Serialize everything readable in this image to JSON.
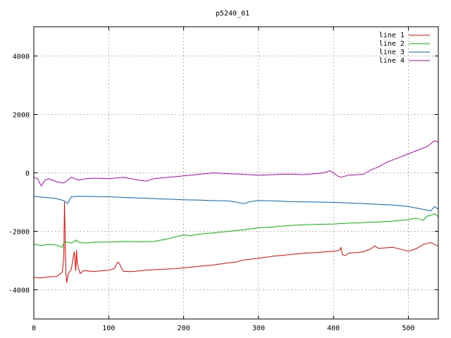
{
  "chart_data": {
    "type": "line",
    "title": "p5240_01",
    "xlabel": "",
    "ylabel": "",
    "xlim": [
      0,
      540
    ],
    "ylim": [
      -5000,
      5000
    ],
    "xticks": [
      0,
      100,
      200,
      300,
      400,
      500
    ],
    "yticks": [
      -4000,
      -2000,
      0,
      2000,
      4000
    ],
    "grid": true,
    "legend_position": "top-right",
    "series": [
      {
        "name": "line 1",
        "color": "#ff0000",
        "x": [
          0,
          10,
          20,
          30,
          38,
          40,
          41,
          42,
          43,
          44,
          46,
          50,
          54,
          56,
          57,
          58,
          60,
          62,
          66,
          70,
          80,
          90,
          100,
          105,
          108,
          110,
          112,
          114,
          118,
          120,
          130,
          150,
          170,
          190,
          200,
          220,
          240,
          260,
          270,
          280,
          300,
          320,
          340,
          360,
          380,
          400,
          408,
          410,
          412,
          416,
          420,
          440,
          450,
          455,
          460,
          480,
          500,
          510,
          520,
          530,
          535,
          540
        ],
        "values": [
          -3580,
          -3590,
          -3560,
          -3550,
          -3400,
          -2900,
          -1000,
          -2500,
          -3450,
          -3750,
          -3450,
          -3300,
          -2700,
          -3350,
          -2650,
          -3100,
          -3300,
          -3450,
          -3350,
          -3350,
          -3380,
          -3350,
          -3330,
          -3300,
          -3250,
          -3150,
          -3050,
          -3100,
          -3300,
          -3370,
          -3380,
          -3330,
          -3300,
          -3280,
          -3250,
          -3200,
          -3150,
          -3080,
          -3050,
          -2980,
          -2920,
          -2850,
          -2800,
          -2750,
          -2720,
          -2680,
          -2650,
          -2550,
          -2800,
          -2830,
          -2750,
          -2700,
          -2600,
          -2500,
          -2580,
          -2550,
          -2680,
          -2600,
          -2450,
          -2380,
          -2450,
          -2500
        ]
      },
      {
        "name": "line 2",
        "color": "#00c000",
        "x": [
          0,
          10,
          20,
          30,
          38,
          40,
          42,
          46,
          50,
          54,
          56,
          58,
          62,
          70,
          80,
          100,
          120,
          140,
          160,
          180,
          190,
          200,
          210,
          220,
          240,
          260,
          280,
          300,
          320,
          340,
          360,
          380,
          400,
          420,
          440,
          460,
          480,
          500,
          510,
          520,
          525,
          530,
          535,
          540
        ],
        "values": [
          -2450,
          -2480,
          -2450,
          -2470,
          -2550,
          -2400,
          -2350,
          -2380,
          -2400,
          -2350,
          -2300,
          -2350,
          -2380,
          -2400,
          -2370,
          -2370,
          -2350,
          -2360,
          -2350,
          -2250,
          -2180,
          -2120,
          -2150,
          -2100,
          -2050,
          -2000,
          -1950,
          -1880,
          -1850,
          -1800,
          -1780,
          -1760,
          -1750,
          -1720,
          -1700,
          -1680,
          -1650,
          -1600,
          -1550,
          -1620,
          -1480,
          -1450,
          -1400,
          -1500
        ]
      },
      {
        "name": "line 3",
        "color": "#0066cc",
        "x": [
          0,
          10,
          20,
          30,
          40,
          45,
          50,
          60,
          80,
          100,
          120,
          140,
          160,
          180,
          200,
          220,
          240,
          260,
          270,
          280,
          290,
          300,
          320,
          340,
          360,
          380,
          400,
          420,
          440,
          460,
          480,
          500,
          520,
          530,
          535,
          540
        ],
        "values": [
          -800,
          -830,
          -850,
          -880,
          -950,
          -1050,
          -820,
          -800,
          -810,
          -820,
          -840,
          -860,
          -880,
          -900,
          -920,
          -930,
          -950,
          -960,
          -1000,
          -1050,
          -980,
          -950,
          -960,
          -980,
          -990,
          -1000,
          -1010,
          -1030,
          -1050,
          -1080,
          -1100,
          -1150,
          -1250,
          -1300,
          -1150,
          -1250
        ]
      },
      {
        "name": "line 4",
        "color": "#c000c0",
        "x": [
          0,
          5,
          10,
          15,
          20,
          30,
          40,
          50,
          60,
          70,
          80,
          100,
          120,
          140,
          150,
          160,
          180,
          200,
          220,
          240,
          260,
          280,
          300,
          320,
          340,
          360,
          380,
          390,
          395,
          400,
          405,
          410,
          420,
          440,
          450,
          460,
          470,
          480,
          490,
          500,
          510,
          520,
          525,
          530,
          535,
          540
        ],
        "values": [
          -150,
          -200,
          -450,
          -250,
          -200,
          -300,
          -350,
          -150,
          -250,
          -200,
          -180,
          -200,
          -150,
          -250,
          -280,
          -200,
          -150,
          -100,
          -50,
          0,
          -30,
          -50,
          -80,
          -60,
          -40,
          -60,
          -20,
          20,
          80,
          0,
          -100,
          -150,
          -80,
          -50,
          100,
          200,
          350,
          450,
          550,
          650,
          750,
          850,
          900,
          1000,
          1100,
          1050
        ]
      }
    ]
  }
}
